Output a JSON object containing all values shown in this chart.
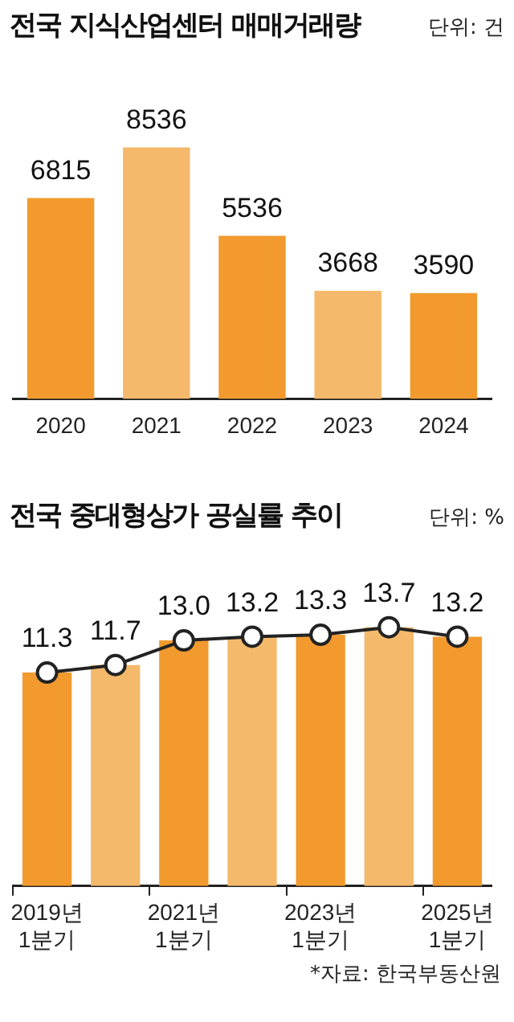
{
  "chart_data": [
    {
      "type": "bar",
      "title": "전국 지식산업센터 매매거래량",
      "annotations": [
        "단위: 건"
      ],
      "categories": [
        "2020",
        "2021",
        "2022",
        "2023",
        "2024"
      ],
      "values": [
        6815,
        8536,
        5536,
        3668,
        3590
      ],
      "colors": [
        "#f29a2e",
        "#f5b96b",
        "#f29a2e",
        "#f5b96b",
        "#f29a2e"
      ],
      "data_labels": true,
      "grid": false,
      "legend": false,
      "tick_labels": "x"
    },
    {
      "type": "bar",
      "title": "전국 중대형상가 공실률 추이",
      "annotations": [
        "단위: %",
        "*자료: 한국부동산원"
      ],
      "categories": [
        "2019년\n1분기",
        null,
        "2021년\n1분기",
        null,
        "2023년\n1분기",
        null,
        "2025년\n1분기"
      ],
      "series": [
        {
          "type": "bar",
          "values": [
            11.3,
            11.7,
            13.0,
            13.2,
            13.3,
            13.7,
            13.2
          ],
          "colors": [
            "#f29a2e",
            "#f5b96b",
            "#f29a2e",
            "#f5b96b",
            "#f29a2e",
            "#f5b96b",
            "#f29a2e"
          ]
        },
        {
          "type": "line",
          "values": [
            11.3,
            11.7,
            13.0,
            13.2,
            13.3,
            13.7,
            13.2
          ],
          "value_labels": [
            "11.3",
            "11.7",
            "13.0",
            "13.2",
            "13.3",
            "13.7",
            "13.2"
          ],
          "color": "#222222",
          "marker": "circle"
        }
      ],
      "grid": false,
      "legend": false,
      "tick_labels": "x"
    }
  ]
}
